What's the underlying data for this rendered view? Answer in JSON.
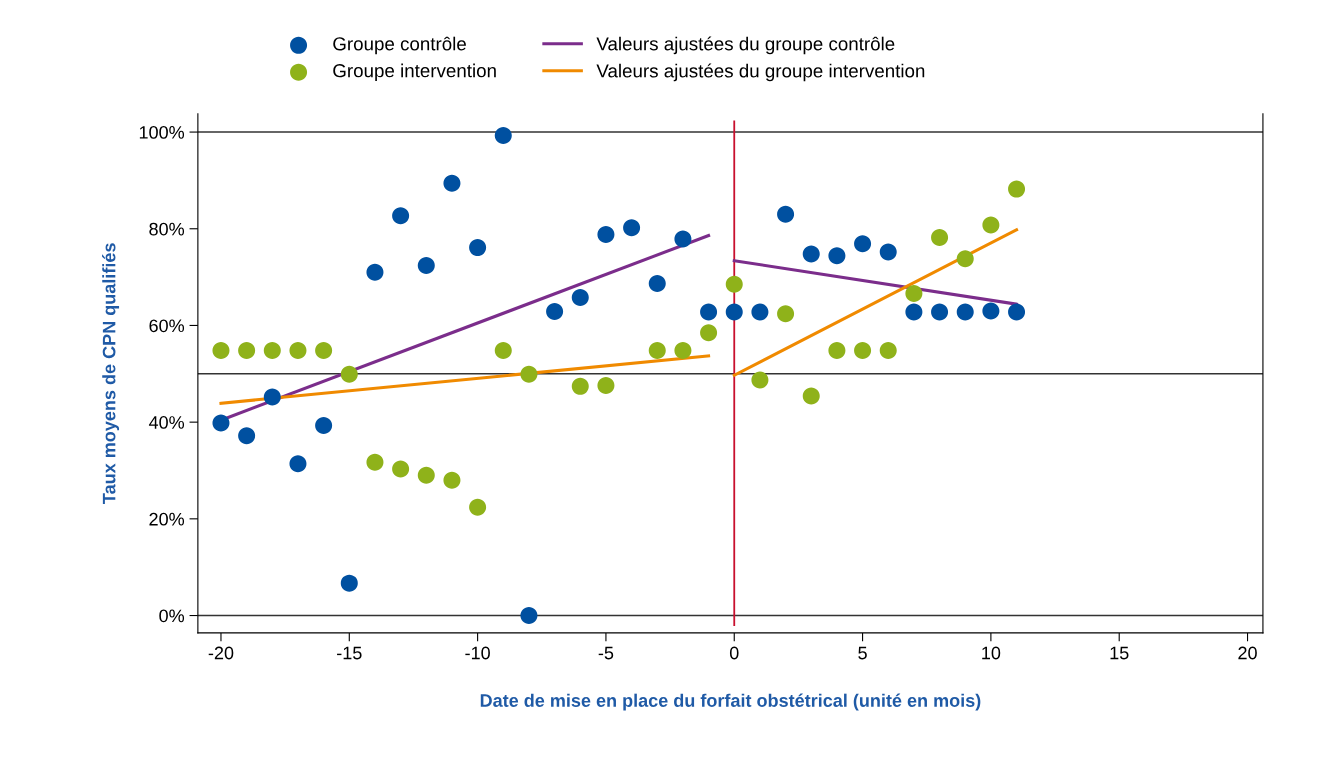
{
  "chart_data": {
    "type": "scatter",
    "xlabel": "Date de mise en place du forfait obstétrical (unité en mois)",
    "ylabel": "Taux moyens de CPN qualifiés",
    "xlim": [
      -20.9,
      20.6
    ],
    "xticks": [
      -20,
      -15,
      -10,
      -5,
      0,
      5,
      10,
      15,
      20
    ],
    "ylim": [
      -3.6,
      103.8
    ],
    "yticks": [
      {
        "value": 0,
        "label": "0%"
      },
      {
        "value": 20,
        "label": "20%"
      },
      {
        "value": 40,
        "label": "40%"
      },
      {
        "value": 60,
        "label": "60%"
      },
      {
        "value": 80,
        "label": "80%"
      },
      {
        "value": 100,
        "label": "100%"
      }
    ],
    "grid": false,
    "legend": "top",
    "ref_lines": [
      {
        "axis": "y",
        "value": 0,
        "color": "#333333"
      },
      {
        "axis": "y",
        "value": 50,
        "color": "#333333"
      },
      {
        "axis": "y",
        "value": 100,
        "color": "#333333"
      },
      {
        "axis": "x",
        "value": 0,
        "color": "#c8102e"
      }
    ],
    "series": [
      {
        "name": "Groupe contrôle",
        "marker": "circle",
        "color": "#0050a0",
        "x": [
          -20,
          -19,
          -18,
          -17,
          -16,
          -15,
          -14,
          -13,
          -12,
          -11,
          -10,
          -9,
          -8,
          -7,
          -6,
          -5,
          -4,
          -3,
          -2,
          -1,
          0,
          1,
          2,
          3,
          4,
          5,
          6,
          7,
          8,
          9,
          10,
          11
        ],
        "values": [
          39.8,
          37.2,
          45.2,
          31.4,
          39.3,
          6.7,
          71.0,
          82.7,
          72.4,
          89.4,
          76.1,
          99.3,
          0,
          62.9,
          65.8,
          78.8,
          80.2,
          68.7,
          77.9,
          62.8,
          62.8,
          62.8,
          83.0,
          74.8,
          74.4,
          76.9,
          75.2,
          62.8,
          62.8,
          62.8,
          63.0,
          62.8
        ]
      },
      {
        "name": "Groupe intervention",
        "marker": "circle",
        "color": "#8fb21a",
        "x": [
          -20,
          -19,
          -18,
          -17,
          -16,
          -15,
          -14,
          -13,
          -12,
          -11,
          -10,
          -9,
          -8,
          -6,
          -5,
          -3,
          -2,
          -1,
          0,
          1,
          2,
          3,
          4,
          5,
          6,
          7,
          8,
          9,
          10,
          11
        ],
        "values": [
          54.8,
          54.8,
          54.8,
          54.8,
          54.8,
          49.9,
          31.7,
          30.3,
          29.0,
          28.0,
          22.4,
          54.8,
          49.9,
          47.4,
          47.6,
          54.8,
          54.8,
          58.5,
          68.5,
          48.7,
          62.4,
          45.4,
          54.8,
          54.8,
          54.8,
          66.6,
          78.2,
          73.8,
          80.8,
          88.2
        ]
      },
      {
        "name": "Valeurs ajustées du groupe contrôle",
        "type": "line",
        "marker": "none",
        "color": "#7b2d8b",
        "x": [
          -20,
          -1
        ],
        "values": [
          40.4,
          78.6
        ]
      },
      {
        "type": "line",
        "marker": "none",
        "color": "#7b2d8b",
        "x": [
          0,
          11
        ],
        "values": [
          73.4,
          64.4
        ]
      },
      {
        "name": "Valeurs ajustées du groupe intervention",
        "type": "line",
        "marker": "none",
        "color": "#f08a00",
        "x": [
          -20,
          -1
        ],
        "values": [
          43.9,
          53.7
        ]
      },
      {
        "type": "line",
        "marker": "none",
        "color": "#f08a00",
        "x": [
          0,
          11
        ],
        "values": [
          49.7,
          79.8
        ]
      }
    ]
  }
}
